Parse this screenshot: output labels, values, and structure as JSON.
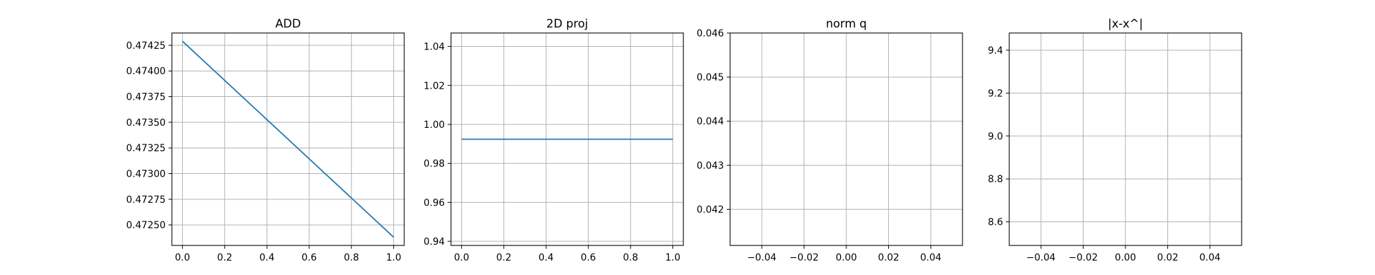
{
  "chart_data": [
    {
      "type": "line",
      "title": "ADD",
      "xlabel": "",
      "ylabel": "",
      "grid": true,
      "x": [
        0.0,
        1.0
      ],
      "series": [
        {
          "values": [
            0.47429,
            0.47238
          ],
          "color": "#1f77b4"
        }
      ],
      "xlim": [
        -0.05,
        1.05
      ],
      "ylim": [
        0.4723,
        0.47437
      ],
      "xticks": [
        0.0,
        0.2,
        0.4,
        0.6,
        0.8,
        1.0
      ],
      "xtick_labels": [
        "0.0",
        "0.2",
        "0.4",
        "0.6",
        "0.8",
        "1.0"
      ],
      "yticks": [
        0.4725,
        0.47275,
        0.473,
        0.47325,
        0.4735,
        0.47375,
        0.474,
        0.47425
      ],
      "ytick_labels": [
        "0.47250",
        "0.47275",
        "0.47300",
        "0.47325",
        "0.47350",
        "0.47375",
        "0.47400",
        "0.47425"
      ]
    },
    {
      "type": "line",
      "title": "2D proj",
      "xlabel": "",
      "ylabel": "",
      "grid": true,
      "x": [
        0.0,
        1.0
      ],
      "series": [
        {
          "values": [
            0.9924,
            0.9924
          ],
          "color": "#1f77b4"
        }
      ],
      "xlim": [
        -0.05,
        1.05
      ],
      "ylim": [
        0.9379,
        1.0469
      ],
      "xticks": [
        0.0,
        0.2,
        0.4,
        0.6,
        0.8,
        1.0
      ],
      "xtick_labels": [
        "0.0",
        "0.2",
        "0.4",
        "0.6",
        "0.8",
        "1.0"
      ],
      "yticks": [
        0.94,
        0.96,
        0.98,
        1.0,
        1.02,
        1.04
      ],
      "ytick_labels": [
        "0.94",
        "0.96",
        "0.98",
        "1.00",
        "1.02",
        "1.04"
      ]
    },
    {
      "type": "line",
      "title": "norm q",
      "xlabel": "",
      "ylabel": "",
      "grid": true,
      "x": [],
      "series": [],
      "xlim": [
        -0.055,
        0.055
      ],
      "ylim": [
        0.04118,
        0.046
      ],
      "xticks": [
        -0.04,
        -0.02,
        0.0,
        0.02,
        0.04
      ],
      "xtick_labels": [
        "−0.04",
        "−0.02",
        "0.00",
        "0.02",
        "0.04"
      ],
      "yticks": [
        0.042,
        0.043,
        0.044,
        0.045,
        0.046
      ],
      "ytick_labels": [
        "0.042",
        "0.043",
        "0.044",
        "0.045",
        "0.046"
      ]
    },
    {
      "type": "line",
      "title": "|x-x^|",
      "xlabel": "",
      "ylabel": "",
      "grid": true,
      "x": [],
      "series": [],
      "xlim": [
        -0.055,
        0.055
      ],
      "ylim": [
        8.49,
        9.48
      ],
      "xticks": [
        -0.04,
        -0.02,
        0.0,
        0.02,
        0.04
      ],
      "xtick_labels": [
        "−0.04",
        "−0.02",
        "0.00",
        "0.02",
        "0.04"
      ],
      "yticks": [
        8.6,
        8.8,
        9.0,
        9.2,
        9.4
      ],
      "ytick_labels": [
        "8.6",
        "8.8",
        "9.0",
        "9.2",
        "9.4"
      ]
    }
  ]
}
